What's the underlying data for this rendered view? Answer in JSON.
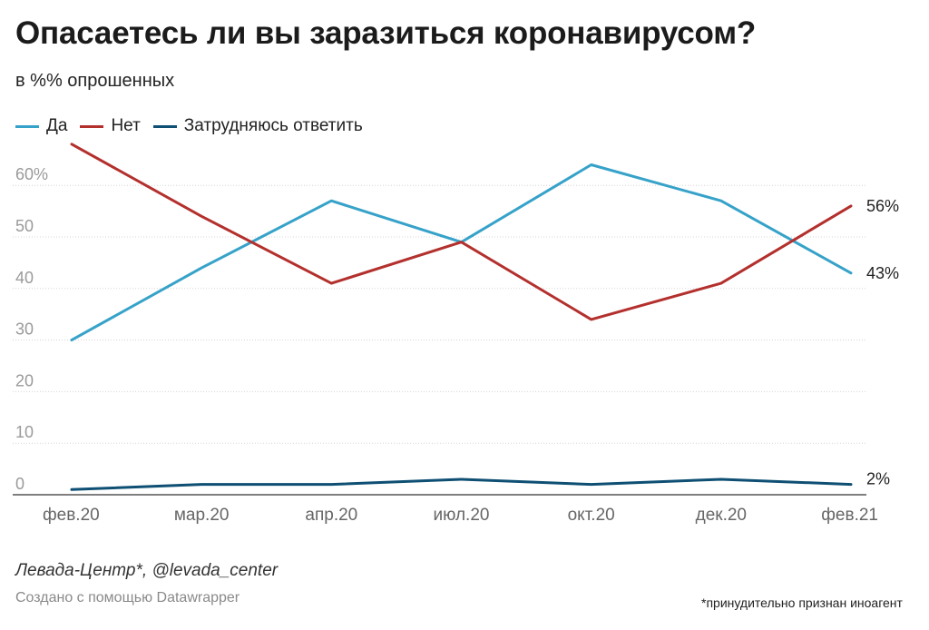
{
  "header": {
    "title": "Опасаетесь ли вы заразиться коронавирусом?",
    "subtitle": "в %% опрошенных"
  },
  "legend": [
    {
      "label": "Да",
      "color": "#36a2c9"
    },
    {
      "label": "Нет",
      "color": "#b3302d"
    },
    {
      "label": "Затрудняюсь ответить",
      "color": "#0e4f73"
    }
  ],
  "footer": {
    "source": "Левада-Центр*, @levada_center",
    "credit": "Создано с помощью Datawrapper",
    "footnote": "*принудительно признан иноагент"
  },
  "chart_data": {
    "type": "line",
    "title": "Опасаетесь ли вы заразиться коронавирусом?",
    "subtitle": "в %% опрошенных",
    "categories": [
      "фев.20",
      "мар.20",
      "апр.20",
      "июл.20",
      "окт.20",
      "дек.20",
      "фев.21"
    ],
    "series": [
      {
        "name": "Да",
        "color": "#36a2c9",
        "values": [
          30,
          44,
          57,
          49,
          64,
          57,
          43
        ],
        "end_label": "43%"
      },
      {
        "name": "Нет",
        "color": "#b3302d",
        "values": [
          68,
          54,
          41,
          49,
          34,
          41,
          56
        ],
        "end_label": "56%"
      },
      {
        "name": "Затрудняюсь ответить",
        "color": "#0e4f73",
        "values": [
          1,
          2,
          2,
          3,
          2,
          3,
          2
        ],
        "end_label": "2%"
      }
    ],
    "yticks": [
      "0",
      "10",
      "20",
      "30",
      "40",
      "50",
      "60%"
    ],
    "ylim": [
      0,
      70
    ],
    "grid": true,
    "legend": "top-left"
  }
}
